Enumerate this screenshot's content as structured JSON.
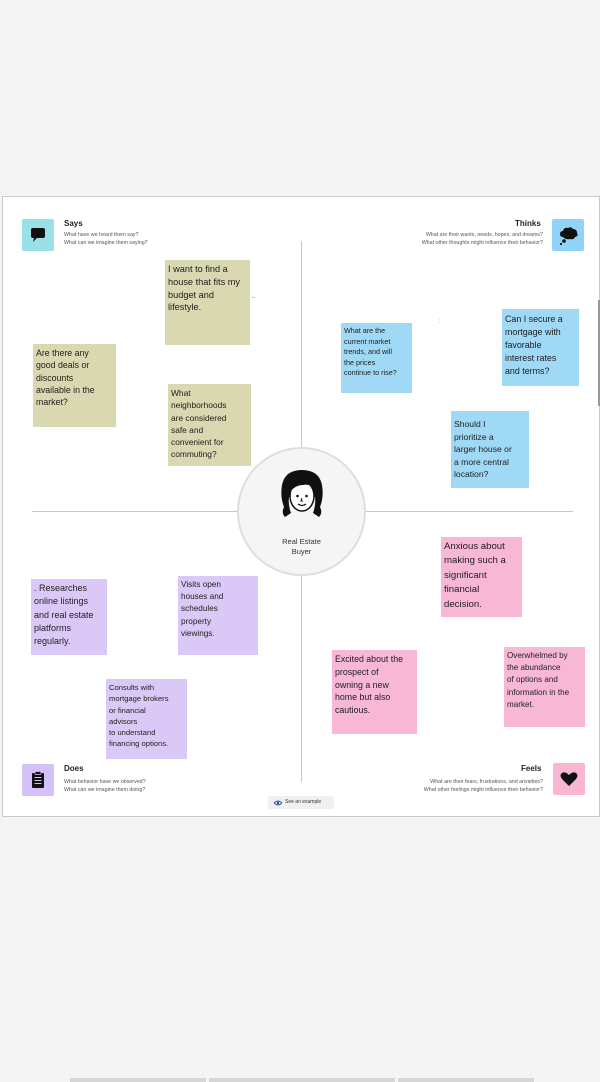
{
  "colors": {
    "says": "#99e1e6",
    "thinks": "#8fd4f7",
    "does": "#d4c1f9",
    "feels": "#f8b6d3",
    "note_olive": "#dad8b0",
    "note_blue": "#9fd9f5",
    "note_purple": "#dac9f7",
    "note_pink": "#f8b8d5"
  },
  "center": {
    "label": "Real Estate\nBuyer",
    "icon": "person-avatar-icon"
  },
  "quadrants": {
    "says": {
      "title": "Says",
      "subtitle": "What have we heard them say?\nWhat can we imagine them saying?",
      "icon": "speech-bubble-icon"
    },
    "thinks": {
      "title": "Thinks",
      "subtitle": "What are their wants, needs, hopes, and dreams?\nWhat other thoughts might influence their behavior?",
      "icon": "thought-cloud-icon"
    },
    "does": {
      "title": "Does",
      "subtitle": "What behavior have we observed?\nWhat can we imagine them doing?",
      "icon": "clipboard-icon"
    },
    "feels": {
      "title": "Feels",
      "subtitle": "What are their fears, frustrations, and anxieties?\nWhat other feelings might influence their behavior?",
      "icon": "heart-icon"
    }
  },
  "notes": {
    "says": [
      "I want to find a\nhouse that fits my\nbudget and\nlifestyle.",
      "Are there any\ngood deals or\ndiscounts\navailable in the\nmarket?",
      "What\nneighborhoods\nare considered\nsafe and\nconvenient for\ncommuting?"
    ],
    "thinks": [
      "What are the\ncurrent market\ntrends, and will\nthe prices\ncontinue to rise?",
      "Can I secure a\nmortgage with\nfavorable\ninterest rates\nand terms?",
      "Should I\nprioritize a\nlarger house or\na more central\nlocation?"
    ],
    "does": [
      ". Researches\nonline listings\nand real estate\nplatforms\nregularly.",
      "Visits open\nhouses and\nschedules\nproperty\nviewings.",
      "Consults with\nmortgage brokers\nor financial\nadvisors\nto understand\nfinancing options."
    ],
    "feels": [
      "Anxious about\nmaking such a\nsignificant\nfinancial\ndecision.",
      "Excited about the\nprospect of\nowning a new\nhome but also\ncautious.",
      "Overwhelmed by\nthe abundance\nof options and\ninformation in the\nmarket."
    ]
  },
  "see_example": {
    "label": "See an example",
    "icon": "eye-icon"
  }
}
